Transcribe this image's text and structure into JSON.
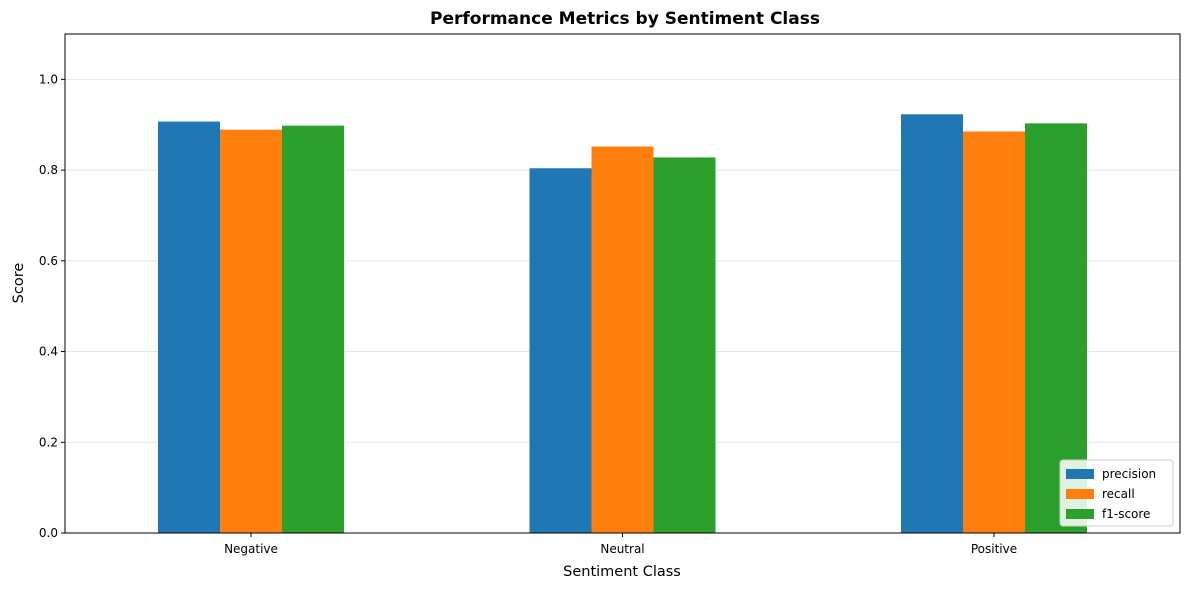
{
  "chart_data": {
    "type": "bar",
    "title": "Performance Metrics by Sentiment Class",
    "xlabel": "Sentiment Class",
    "ylabel": "Score",
    "categories": [
      "Negative",
      "Neutral",
      "Positive"
    ],
    "series": [
      {
        "name": "precision",
        "color": "#1f77b4",
        "values": [
          0.907,
          0.804,
          0.923
        ]
      },
      {
        "name": "recall",
        "color": "#ff7f0e",
        "values": [
          0.889,
          0.852,
          0.885
        ]
      },
      {
        "name": "f1-score",
        "color": "#2ca02c",
        "values": [
          0.898,
          0.828,
          0.903
        ]
      }
    ],
    "ylim": [
      0,
      1.1
    ],
    "yticks": [
      "0.0",
      "0.2",
      "0.4",
      "0.6",
      "0.8",
      "1.0"
    ],
    "grid": "y-axis only, light",
    "legend_position": "lower-right"
  }
}
